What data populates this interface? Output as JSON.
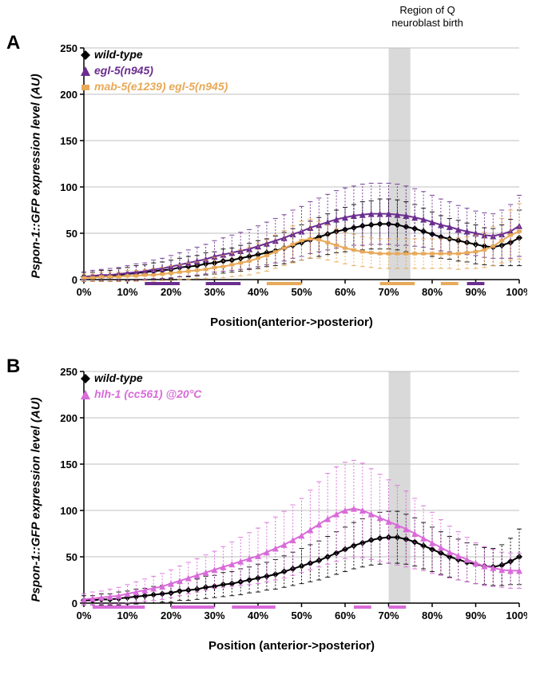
{
  "region_label": "Region of Q\nneuroblast birth",
  "panelA": {
    "label": "A",
    "ylabel": "Pspon-1::GFP expression level (AU)",
    "xlabel": "Position(anterior->posterior)",
    "ylim": [
      0,
      250
    ],
    "ytick_step": 50,
    "xlim": [
      0,
      100
    ],
    "xtick_step": 10,
    "shade_x": [
      70,
      75
    ],
    "shade_color": "#d9d9d9",
    "grid_color": "#bfbfbf",
    "axis_color": "#000000",
    "legend": [
      {
        "label": "wild-type",
        "color": "#000000",
        "marker": "diamond"
      },
      {
        "label": "egl-5(n945)",
        "color": "#6b2e8f",
        "marker": "triangle"
      },
      {
        "label": "mab-5(e1239) egl-5(n945)",
        "color": "#e8a958",
        "marker": "square"
      }
    ],
    "series": {
      "wild_type": {
        "color": "#000000",
        "marker": "diamond",
        "x": [
          0,
          2,
          4,
          6,
          8,
          10,
          12,
          14,
          16,
          18,
          20,
          22,
          24,
          26,
          28,
          30,
          32,
          34,
          36,
          38,
          40,
          42,
          44,
          46,
          48,
          50,
          52,
          54,
          56,
          58,
          60,
          62,
          64,
          66,
          68,
          70,
          72,
          74,
          76,
          78,
          80,
          82,
          84,
          86,
          88,
          90,
          92,
          94,
          96,
          98,
          100
        ],
        "y": [
          3,
          3,
          4,
          4,
          5,
          6,
          7,
          8,
          9,
          10,
          11,
          13,
          14,
          15,
          17,
          18,
          20,
          21,
          23,
          25,
          27,
          29,
          31,
          34,
          37,
          40,
          43,
          46,
          49,
          52,
          54,
          56,
          58,
          59,
          60,
          60,
          59,
          57,
          55,
          52,
          49,
          46,
          44,
          42,
          40,
          38,
          36,
          35,
          37,
          40,
          45
        ],
        "err": [
          5,
          5,
          6,
          6,
          7,
          7,
          8,
          8,
          9,
          9,
          10,
          10,
          11,
          11,
          12,
          12,
          13,
          13,
          14,
          14,
          15,
          15,
          16,
          17,
          18,
          19,
          20,
          21,
          22,
          23,
          24,
          25,
          26,
          26,
          27,
          27,
          27,
          27,
          26,
          25,
          24,
          23,
          22,
          22,
          21,
          21,
          20,
          20,
          22,
          25,
          30
        ]
      },
      "egl5": {
        "color": "#6b2e8f",
        "marker": "triangle",
        "x": [
          0,
          2,
          4,
          6,
          8,
          10,
          12,
          14,
          16,
          18,
          20,
          22,
          24,
          26,
          28,
          30,
          32,
          34,
          36,
          38,
          40,
          42,
          44,
          46,
          48,
          50,
          52,
          54,
          56,
          58,
          60,
          62,
          64,
          66,
          68,
          70,
          72,
          74,
          76,
          78,
          80,
          82,
          84,
          86,
          88,
          90,
          92,
          94,
          96,
          98,
          100
        ],
        "y": [
          3,
          4,
          5,
          5,
          6,
          7,
          8,
          9,
          11,
          12,
          14,
          16,
          18,
          20,
          22,
          25,
          27,
          29,
          31,
          33,
          36,
          39,
          42,
          45,
          49,
          52,
          56,
          59,
          62,
          65,
          67,
          69,
          70,
          71,
          71,
          71,
          70,
          69,
          67,
          65,
          62,
          59,
          57,
          54,
          52,
          50,
          48,
          47,
          49,
          52,
          58
        ],
        "err": [
          5,
          6,
          6,
          7,
          7,
          8,
          9,
          9,
          10,
          11,
          12,
          13,
          14,
          15,
          16,
          17,
          18,
          19,
          20,
          21,
          22,
          23,
          24,
          25,
          26,
          27,
          28,
          29,
          30,
          31,
          32,
          32,
          33,
          33,
          33,
          33,
          33,
          32,
          31,
          30,
          29,
          28,
          27,
          26,
          25,
          24,
          24,
          24,
          26,
          29,
          33
        ]
      },
      "mab5_egl5": {
        "color": "#e8a958",
        "marker": "square",
        "x": [
          0,
          2,
          4,
          6,
          8,
          10,
          12,
          14,
          16,
          18,
          20,
          22,
          24,
          26,
          28,
          30,
          32,
          34,
          36,
          38,
          40,
          42,
          44,
          46,
          48,
          50,
          52,
          54,
          56,
          58,
          60,
          62,
          64,
          66,
          68,
          70,
          72,
          74,
          76,
          78,
          80,
          82,
          84,
          86,
          88,
          90,
          92,
          94,
          96,
          98,
          100
        ],
        "y": [
          2,
          2,
          3,
          3,
          3,
          4,
          4,
          5,
          5,
          6,
          7,
          8,
          9,
          10,
          11,
          13,
          14,
          16,
          18,
          20,
          23,
          26,
          30,
          34,
          38,
          42,
          44,
          43,
          40,
          37,
          34,
          32,
          30,
          29,
          28,
          28,
          28,
          28,
          28,
          28,
          28,
          28,
          28,
          28,
          29,
          30,
          32,
          36,
          42,
          48,
          52
        ],
        "err": [
          4,
          4,
          5,
          5,
          5,
          6,
          6,
          6,
          7,
          7,
          8,
          8,
          9,
          9,
          10,
          11,
          12,
          13,
          14,
          15,
          16,
          17,
          18,
          19,
          20,
          21,
          21,
          20,
          19,
          18,
          17,
          17,
          16,
          16,
          16,
          16,
          16,
          16,
          16,
          16,
          16,
          16,
          16,
          17,
          17,
          18,
          19,
          21,
          24,
          27,
          30
        ]
      }
    },
    "sig_bars": {
      "egl5": {
        "color": "#6b2e8f",
        "ranges": [
          [
            14,
            22
          ],
          [
            28,
            36
          ],
          [
            88,
            92
          ]
        ]
      },
      "mab5_egl5": {
        "color": "#e8a958",
        "ranges": [
          [
            42,
            50
          ],
          [
            68,
            76
          ],
          [
            82,
            86
          ]
        ]
      }
    }
  },
  "panelB": {
    "label": "B",
    "ylabel": "Pspon-1::GFP expression level (AU)",
    "xlabel": "Position (anterior->posterior)",
    "ylim": [
      0,
      250
    ],
    "ytick_step": 50,
    "xlim": [
      0,
      100
    ],
    "xtick_step": 10,
    "shade_x": [
      70,
      75
    ],
    "shade_color": "#d9d9d9",
    "grid_color": "#bfbfbf",
    "axis_color": "#000000",
    "legend": [
      {
        "label": "wild-type",
        "color": "#000000",
        "marker": "diamond"
      },
      {
        "label": "hlh-1 (cc561) @20°C",
        "color": "#d96bd9",
        "marker": "triangle",
        "italic_partial": true
      }
    ],
    "series": {
      "wild_type": {
        "color": "#000000",
        "marker": "diamond",
        "x": [
          0,
          2,
          4,
          6,
          8,
          10,
          12,
          14,
          16,
          18,
          20,
          22,
          24,
          26,
          28,
          30,
          32,
          34,
          36,
          38,
          40,
          42,
          44,
          46,
          48,
          50,
          52,
          54,
          56,
          58,
          60,
          62,
          64,
          66,
          68,
          70,
          72,
          74,
          76,
          78,
          80,
          82,
          84,
          86,
          88,
          90,
          92,
          94,
          96,
          98,
          100
        ],
        "y": [
          3,
          3,
          4,
          4,
          5,
          6,
          7,
          8,
          9,
          10,
          11,
          13,
          14,
          15,
          17,
          18,
          20,
          21,
          23,
          25,
          27,
          29,
          31,
          34,
          37,
          40,
          43,
          46,
          50,
          54,
          58,
          62,
          65,
          68,
          70,
          71,
          71,
          69,
          66,
          62,
          58,
          54,
          50,
          47,
          44,
          42,
          40,
          39,
          41,
          45,
          50
        ],
        "err": [
          5,
          5,
          6,
          6,
          7,
          7,
          8,
          8,
          9,
          9,
          10,
          10,
          11,
          11,
          12,
          12,
          13,
          13,
          14,
          14,
          15,
          15,
          16,
          17,
          18,
          19,
          20,
          21,
          22,
          23,
          24,
          25,
          26,
          27,
          28,
          28,
          28,
          27,
          26,
          25,
          24,
          23,
          22,
          22,
          21,
          21,
          20,
          20,
          22,
          25,
          30
        ]
      },
      "hlh1": {
        "color": "#d96bd9",
        "marker": "triangle",
        "x": [
          0,
          2,
          4,
          6,
          8,
          10,
          12,
          14,
          16,
          18,
          20,
          22,
          24,
          26,
          28,
          30,
          32,
          34,
          36,
          38,
          40,
          42,
          44,
          46,
          48,
          50,
          52,
          54,
          56,
          58,
          60,
          62,
          64,
          66,
          68,
          70,
          72,
          74,
          76,
          78,
          80,
          82,
          84,
          86,
          88,
          90,
          92,
          94,
          96,
          98,
          100
        ],
        "y": [
          4,
          5,
          6,
          7,
          8,
          10,
          12,
          14,
          16,
          18,
          21,
          24,
          27,
          30,
          33,
          36,
          39,
          42,
          45,
          48,
          51,
          55,
          59,
          63,
          68,
          73,
          79,
          85,
          91,
          96,
          100,
          102,
          100,
          96,
          92,
          88,
          84,
          80,
          75,
          70,
          65,
          60,
          55,
          51,
          47,
          43,
          40,
          38,
          36,
          35,
          35
        ],
        "err": [
          6,
          7,
          7,
          8,
          9,
          10,
          11,
          12,
          13,
          14,
          15,
          16,
          17,
          18,
          19,
          20,
          22,
          24,
          26,
          28,
          30,
          32,
          34,
          36,
          38,
          40,
          43,
          46,
          49,
          51,
          52,
          52,
          51,
          49,
          47,
          45,
          43,
          41,
          38,
          35,
          33,
          30,
          28,
          26,
          24,
          22,
          21,
          20,
          19,
          19,
          19
        ]
      }
    },
    "sig_bars": {
      "hlh1": {
        "color": "#d96bd9",
        "ranges": [
          [
            2,
            14
          ],
          [
            20,
            30
          ],
          [
            34,
            44
          ],
          [
            62,
            66
          ],
          [
            70,
            74
          ]
        ]
      }
    }
  }
}
